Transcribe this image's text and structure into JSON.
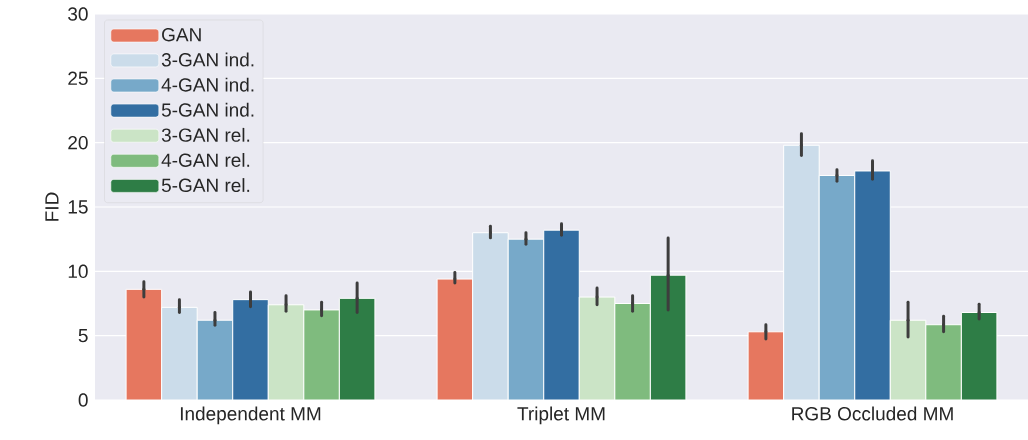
{
  "chart_data": {
    "type": "bar",
    "ylabel": "FID",
    "categories": [
      "Independent MM",
      "Triplet MM",
      "RGB Occluded MM"
    ],
    "series": [
      {
        "name": "GAN",
        "color": "#e6775f",
        "values": [
          8.6,
          9.4,
          5.3
        ],
        "errors": [
          [
            8.0,
            9.2
          ],
          [
            9.1,
            9.9
          ],
          [
            4.75,
            5.85
          ]
        ]
      },
      {
        "name": "3-GAN ind.",
        "color": "#cbdcea",
        "values": [
          7.2,
          13.0,
          19.8
        ],
        "errors": [
          [
            6.8,
            7.8
          ],
          [
            12.6,
            13.5
          ],
          [
            19.0,
            20.7
          ]
        ]
      },
      {
        "name": "4-GAN ind.",
        "color": "#77a9c9",
        "values": [
          6.2,
          12.5,
          17.45
        ],
        "errors": [
          [
            5.8,
            6.8
          ],
          [
            12.1,
            13.0
          ],
          [
            17.0,
            17.9
          ]
        ]
      },
      {
        "name": "5-GAN ind.",
        "color": "#336ea2",
        "values": [
          7.8,
          13.2,
          17.8
        ],
        "errors": [
          [
            7.25,
            8.4
          ],
          [
            12.8,
            13.7
          ],
          [
            17.15,
            18.6
          ]
        ]
      },
      {
        "name": "3-GAN rel.",
        "color": "#cbe4c6",
        "values": [
          7.4,
          8.0,
          6.2
        ],
        "errors": [
          [
            6.9,
            8.1
          ],
          [
            7.4,
            8.7
          ],
          [
            4.9,
            7.6
          ]
        ]
      },
      {
        "name": "4-GAN rel.",
        "color": "#7fbb7e",
        "values": [
          7.0,
          7.5,
          5.85
        ],
        "errors": [
          [
            6.55,
            7.6
          ],
          [
            6.9,
            8.1
          ],
          [
            5.3,
            6.5
          ]
        ]
      },
      {
        "name": "5-GAN rel.",
        "color": "#2e7d46",
        "values": [
          7.9,
          9.7,
          6.8
        ],
        "errors": [
          [
            6.8,
            9.1
          ],
          [
            7.0,
            12.6
          ],
          [
            6.3,
            7.45
          ]
        ]
      }
    ],
    "ylim": [
      0,
      30
    ],
    "yticks": [
      0,
      5,
      10,
      15,
      20,
      25,
      30
    ],
    "grid": "y",
    "legend": "top left"
  }
}
